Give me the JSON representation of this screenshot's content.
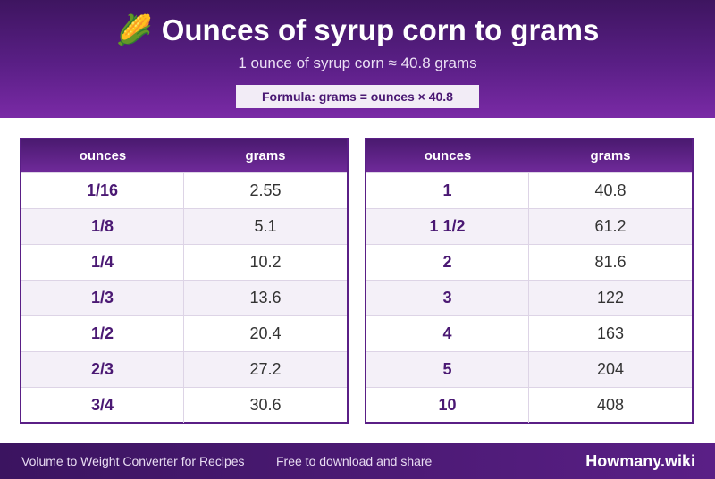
{
  "header": {
    "emoji": "🌽",
    "title": "Ounces of syrup corn to grams",
    "subtitle": "1 ounce of syrup corn ≈ 40.8 grams",
    "formula": "Formula: grams = ounces × 40.8"
  },
  "tables": [
    {
      "col_ounces": "ounces",
      "col_grams": "grams",
      "rows": [
        {
          "ounces": "1/16",
          "grams": "2.55"
        },
        {
          "ounces": "1/8",
          "grams": "5.1"
        },
        {
          "ounces": "1/4",
          "grams": "10.2"
        },
        {
          "ounces": "1/3",
          "grams": "13.6"
        },
        {
          "ounces": "1/2",
          "grams": "20.4"
        },
        {
          "ounces": "2/3",
          "grams": "27.2"
        },
        {
          "ounces": "3/4",
          "grams": "30.6"
        }
      ]
    },
    {
      "col_ounces": "ounces",
      "col_grams": "grams",
      "rows": [
        {
          "ounces": "1",
          "grams": "40.8"
        },
        {
          "ounces": "1 1/2",
          "grams": "61.2"
        },
        {
          "ounces": "2",
          "grams": "81.6"
        },
        {
          "ounces": "3",
          "grams": "122"
        },
        {
          "ounces": "4",
          "grams": "163"
        },
        {
          "ounces": "5",
          "grams": "204"
        },
        {
          "ounces": "10",
          "grams": "408"
        }
      ]
    }
  ],
  "footer": {
    "left": "Volume to Weight Converter for Recipes",
    "middle": "Free to download and share",
    "brand": "Howmany.wiki"
  },
  "colors": {
    "primary": "#5a1f86",
    "accent_text": "#4a1873"
  }
}
